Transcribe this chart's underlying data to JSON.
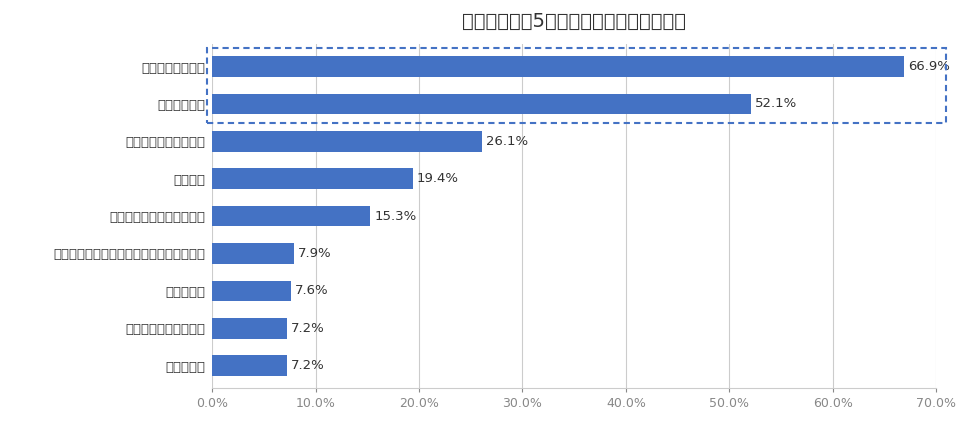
{
  "title": "新型コロナが5類移行後も変わらない行動",
  "categories": [
    "テレワーク",
    "旅行やレジャーの自粛",
    "外食の自粛",
    "テイクアウトやデリバリーサービスの利用",
    "新型コロナワクチンの接種",
    "特にない",
    "体調不調時の外出自粛",
    "マスクの着用",
    "手洗い・手指消毒"
  ],
  "values": [
    7.2,
    7.2,
    7.6,
    7.9,
    15.3,
    19.4,
    26.1,
    52.1,
    66.9
  ],
  "bar_color": "#4472c4",
  "highlight_indices": [
    7,
    8
  ],
  "highlight_box_color": "#4472c4",
  "xlim": [
    0,
    70
  ],
  "xticks": [
    0,
    10,
    20,
    30,
    40,
    50,
    60,
    70
  ],
  "xtick_labels": [
    "0.0%",
    "10.0%",
    "20.0%",
    "30.0%",
    "40.0%",
    "50.0%",
    "60.0%",
    "70.0%"
  ],
  "title_fontsize": 14,
  "label_fontsize": 9.5,
  "value_fontsize": 9.5,
  "background_color": "#ffffff",
  "grid_color": "#cccccc"
}
